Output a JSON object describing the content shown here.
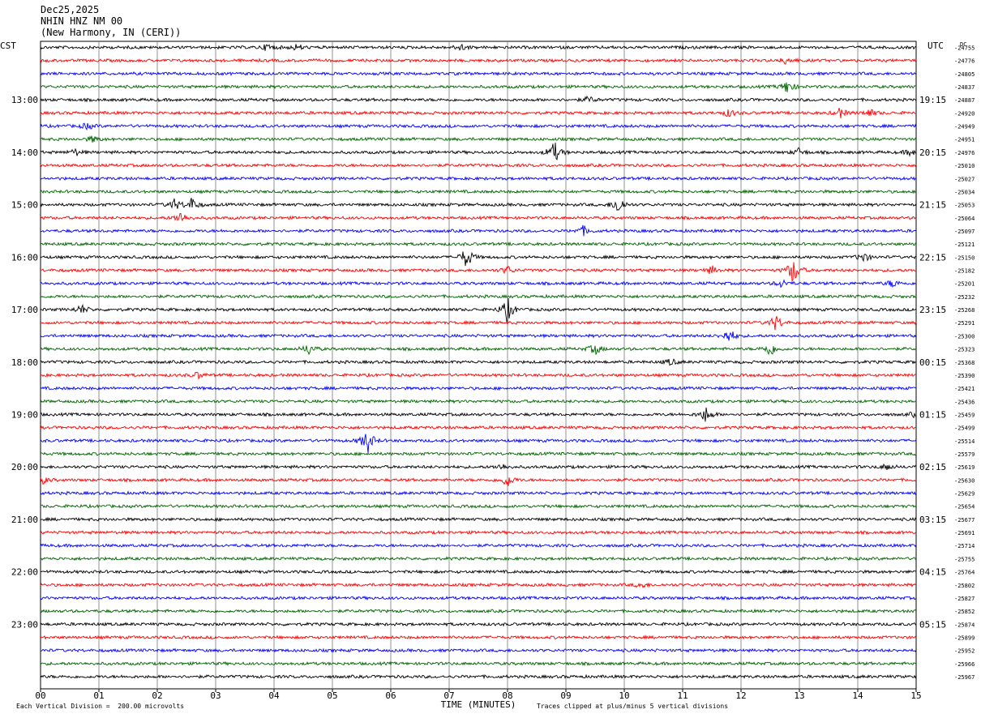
{
  "header": {
    "date": "Dec25,2025",
    "station": "NHIN HNZ NM 00",
    "location": "(New Harmony, IN (CERI))"
  },
  "chart_data": {
    "type": "line",
    "title": "NHIN HNZ NM 00",
    "left_axis_label": "CST",
    "right_axis_label": "UTC",
    "dc_label": "DC",
    "xlabel": "TIME (MINUTES)",
    "x_ticks": [
      "00",
      "01",
      "02",
      "03",
      "04",
      "05",
      "06",
      "07",
      "08",
      "09",
      "10",
      "11",
      "12",
      "13",
      "14",
      "15"
    ],
    "xlim": [
      0,
      15
    ],
    "trace_colors": [
      "#000000",
      "#ff0000",
      "#0000ff",
      "#006400"
    ],
    "left_time_labels": [
      "13:00",
      "14:00",
      "15:00",
      "16:00",
      "17:00",
      "18:00",
      "19:00",
      "20:00",
      "21:00",
      "22:00",
      "23:00"
    ],
    "right_time_labels": [
      "19:15",
      "20:15",
      "21:15",
      "22:15",
      "23:15",
      "00:15",
      "01:15",
      "02:15",
      "03:15",
      "04:15",
      "05:15"
    ],
    "hour_label_first_trace": 4,
    "hour_label_every": 4,
    "dc_offsets": [
      "-24755",
      "-24776",
      "-24805",
      "-24837",
      "-24887",
      "-24920",
      "-24949",
      "-24951",
      "-24976",
      "-25010",
      "-25027",
      "-25034",
      "-25053",
      "-25064",
      "-25097",
      "-25121",
      "-25150",
      "-25182",
      "-25201",
      "-25232",
      "-25268",
      "-25291",
      "-25300",
      "-25323",
      "-25368",
      "-25390",
      "-25421",
      "-25436",
      "-25459",
      "-25499",
      "-25514",
      "-25579",
      "-25619",
      "-25630",
      "-25629",
      "-25654",
      "-25677",
      "-25691",
      "-25714",
      "-25755",
      "-25764",
      "-25802",
      "-25827",
      "-25852",
      "-25874",
      "-25899",
      "-25952",
      "-25966",
      "-25967"
    ],
    "events": [
      {
        "trace": 0,
        "minute": 3.9,
        "amp": 5
      },
      {
        "trace": 0,
        "minute": 4.4,
        "amp": 4
      },
      {
        "trace": 0,
        "minute": 7.2,
        "amp": 4
      },
      {
        "trace": 1,
        "minute": 12.8,
        "amp": 6
      },
      {
        "trace": 3,
        "minute": 12.8,
        "amp": 9
      },
      {
        "trace": 4,
        "minute": 9.4,
        "amp": 4
      },
      {
        "trace": 5,
        "minute": 11.8,
        "amp": 5
      },
      {
        "trace": 5,
        "minute": 13.7,
        "amp": 6
      },
      {
        "trace": 5,
        "minute": 14.2,
        "amp": 5
      },
      {
        "trace": 6,
        "minute": 0.8,
        "amp": 4
      },
      {
        "trace": 7,
        "minute": 0.9,
        "amp": 4
      },
      {
        "trace": 8,
        "minute": 0.6,
        "amp": 4
      },
      {
        "trace": 8,
        "minute": 8.8,
        "amp": 14
      },
      {
        "trace": 8,
        "minute": 13.0,
        "amp": 5
      },
      {
        "trace": 8,
        "minute": 14.9,
        "amp": 4
      },
      {
        "trace": 12,
        "minute": 2.3,
        "amp": 7
      },
      {
        "trace": 12,
        "minute": 2.6,
        "amp": 9
      },
      {
        "trace": 12,
        "minute": 9.9,
        "amp": 12
      },
      {
        "trace": 13,
        "minute": 2.4,
        "amp": 8
      },
      {
        "trace": 14,
        "minute": 9.3,
        "amp": 6
      },
      {
        "trace": 16,
        "minute": 7.3,
        "amp": 14
      },
      {
        "trace": 16,
        "minute": 14.1,
        "amp": 6
      },
      {
        "trace": 17,
        "minute": 11.5,
        "amp": 5
      },
      {
        "trace": 17,
        "minute": 12.9,
        "amp": 18
      },
      {
        "trace": 17,
        "minute": 8.0,
        "amp": 5
      },
      {
        "trace": 18,
        "minute": 12.7,
        "amp": 5
      },
      {
        "trace": 18,
        "minute": 14.6,
        "amp": 5
      },
      {
        "trace": 20,
        "minute": 0.7,
        "amp": 6
      },
      {
        "trace": 20,
        "minute": 8.0,
        "amp": 16
      },
      {
        "trace": 21,
        "minute": 12.6,
        "amp": 10
      },
      {
        "trace": 22,
        "minute": 11.8,
        "amp": 9
      },
      {
        "trace": 23,
        "minute": 4.6,
        "amp": 7
      },
      {
        "trace": 23,
        "minute": 9.5,
        "amp": 7
      },
      {
        "trace": 23,
        "minute": 12.5,
        "amp": 10
      },
      {
        "trace": 24,
        "minute": 10.8,
        "amp": 4
      },
      {
        "trace": 25,
        "minute": 2.7,
        "amp": 4
      },
      {
        "trace": 28,
        "minute": 11.4,
        "amp": 10
      },
      {
        "trace": 28,
        "minute": 15.0,
        "amp": 4
      },
      {
        "trace": 30,
        "minute": 5.6,
        "amp": 16
      },
      {
        "trace": 32,
        "minute": 7.9,
        "amp": 4
      },
      {
        "trace": 32,
        "minute": 14.5,
        "amp": 4
      },
      {
        "trace": 33,
        "minute": 8.0,
        "amp": 9
      },
      {
        "trace": 33,
        "minute": 0.05,
        "amp": 4
      },
      {
        "trace": 41,
        "minute": 10.3,
        "amp": 4
      }
    ],
    "footer_left": "Each Vertical Division =  200.00 microvolts",
    "footer_right": "Traces clipped at plus/minus 5 vertical divisions"
  }
}
